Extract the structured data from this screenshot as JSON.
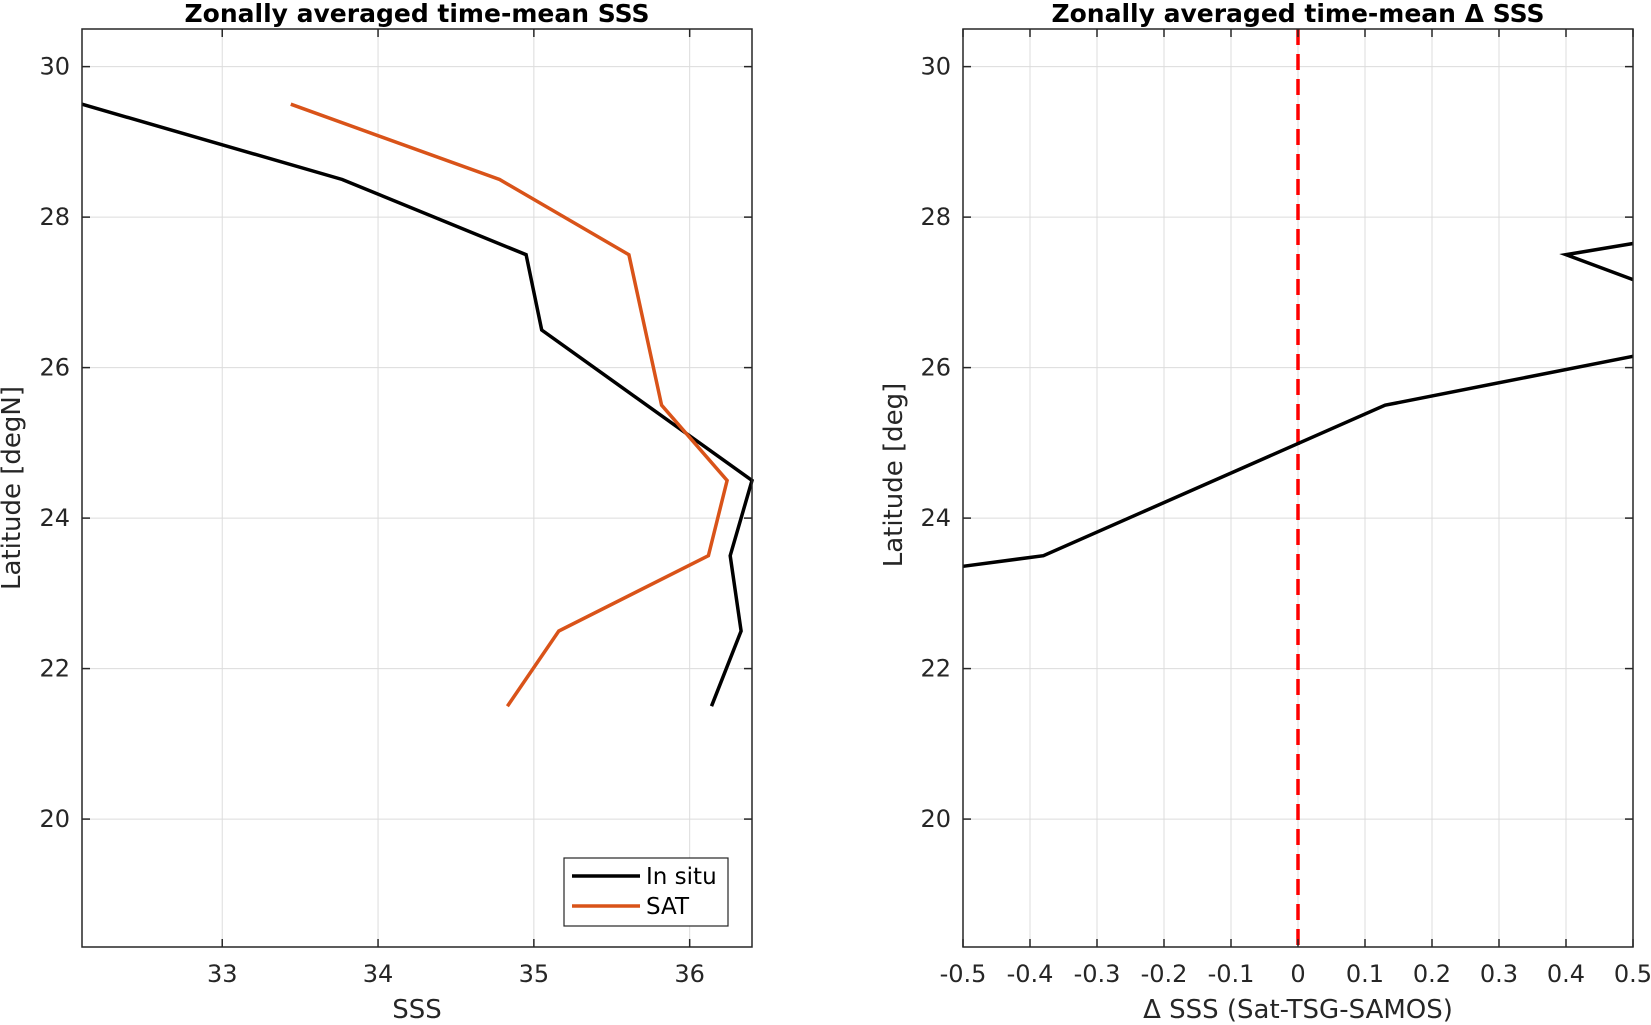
{
  "chart_data": [
    {
      "type": "line",
      "title": "Zonally averaged time-mean SSS",
      "xlabel": "SSS",
      "ylabel": "Latitude [degN]",
      "xlim": [
        32.1,
        36.4
      ],
      "ylim": [
        18.3,
        30.5
      ],
      "xticks": [
        33,
        34,
        35,
        36
      ],
      "xtick_labels": [
        "33",
        "34",
        "35",
        "36"
      ],
      "yticks": [
        20,
        22,
        24,
        26,
        28,
        30
      ],
      "ytick_labels": [
        "20",
        "22",
        "24",
        "26",
        "28",
        "30"
      ],
      "grid": true,
      "legend_position": "bottom-right",
      "series": [
        {
          "name": "In situ",
          "color": "#000000",
          "x": [
            32.1,
            33.77,
            34.95,
            35.05,
            36.4,
            36.26,
            36.33,
            36.14
          ],
          "y": [
            29.5,
            28.5,
            27.5,
            26.5,
            24.5,
            23.5,
            22.5,
            21.5
          ]
        },
        {
          "name": "SAT",
          "color": "#D95319",
          "x": [
            33.44,
            34.78,
            35.61,
            35.82,
            36.24,
            36.12,
            35.16,
            34.83
          ],
          "y": [
            29.5,
            28.5,
            27.5,
            25.5,
            24.5,
            23.5,
            22.5,
            21.5
          ]
        }
      ]
    },
    {
      "type": "line",
      "title": "Zonally averaged time-mean Δ SSS",
      "xlabel": "Δ SSS (Sat-TSG-SAMOS)",
      "ylabel": "Latitude [deg]",
      "xlim": [
        -0.5,
        0.5
      ],
      "ylim": [
        18.3,
        30.5
      ],
      "xticks": [
        -0.5,
        -0.4,
        -0.3,
        -0.2,
        -0.1,
        0,
        0.1,
        0.2,
        0.3,
        0.4,
        0.5
      ],
      "xtick_labels": [
        "-0.5",
        "-0.4",
        "-0.3",
        "-0.2",
        "-0.1",
        "0",
        "0.1",
        "0.2",
        "0.3",
        "0.4",
        "0.5"
      ],
      "yticks": [
        20,
        22,
        24,
        26,
        28,
        30
      ],
      "ytick_labels": [
        "20",
        "22",
        "24",
        "26",
        "28",
        "30"
      ],
      "grid": true,
      "series": [
        {
          "color": "#000000",
          "x": [
            -0.5,
            -0.38,
            0.13,
            0.5
          ],
          "y": [
            23.36,
            23.5,
            25.5,
            26.15
          ]
        },
        {
          "color": "#000000",
          "x": [
            0.5,
            0.4,
            0.5
          ],
          "y": [
            27.65,
            27.5,
            27.17
          ]
        }
      ],
      "reference_line": {
        "x": 0,
        "style": "dashed",
        "color": "#FF0000"
      }
    }
  ]
}
